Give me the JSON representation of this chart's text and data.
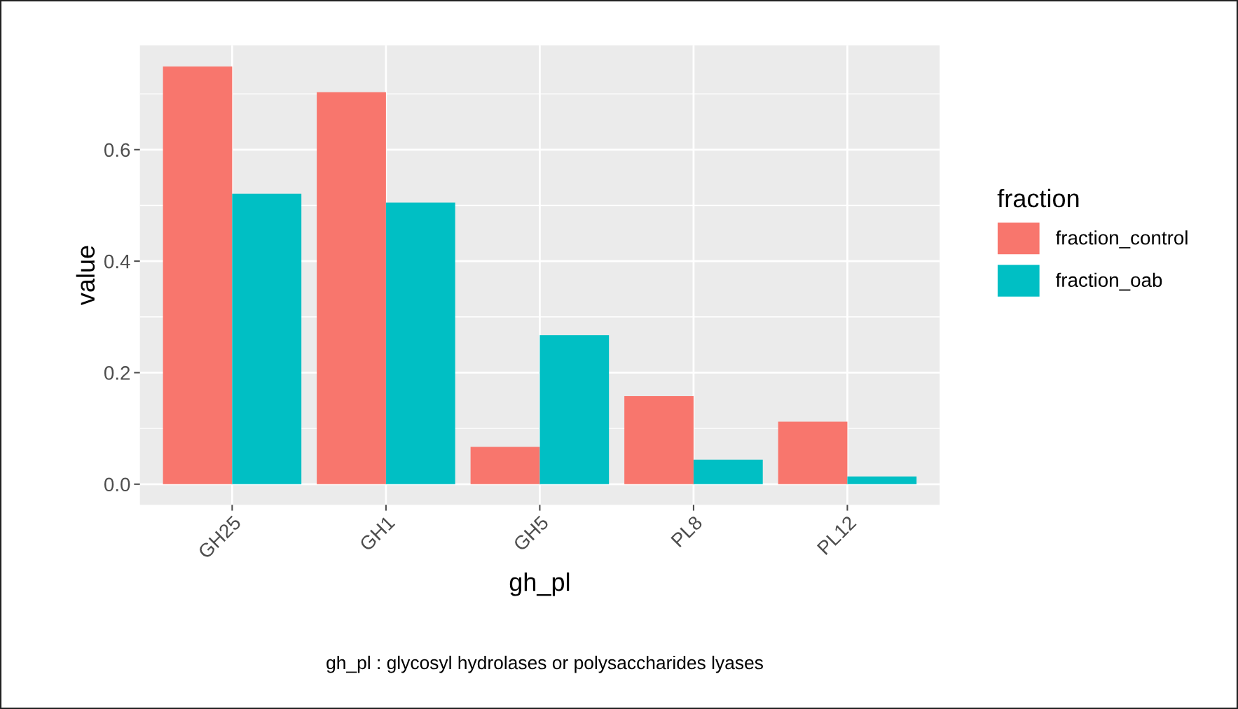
{
  "chart_data": {
    "type": "bar",
    "xlabel": "gh_pl",
    "ylabel": "value",
    "legend_title": "fraction",
    "categories": [
      "GH25",
      "GH1",
      "GH5",
      "PL8",
      "PL12"
    ],
    "series": [
      {
        "name": "fraction_control",
        "color": "#f8766d",
        "values": [
          0.749,
          0.703,
          0.067,
          0.158,
          0.112
        ]
      },
      {
        "name": "fraction_oab",
        "color": "#00bfc4",
        "values": [
          0.521,
          0.505,
          0.267,
          0.044,
          0.014
        ]
      }
    ],
    "ylim": [
      -0.037,
      0.787
    ],
    "yticks": [
      {
        "value": 0,
        "label": "0.0"
      },
      0.2,
      0.4,
      0.6
    ],
    "grid": true,
    "legend": "right",
    "annotations": [
      "gh_pl : glycosyl hydrolases or polysaccharides lyases"
    ]
  }
}
